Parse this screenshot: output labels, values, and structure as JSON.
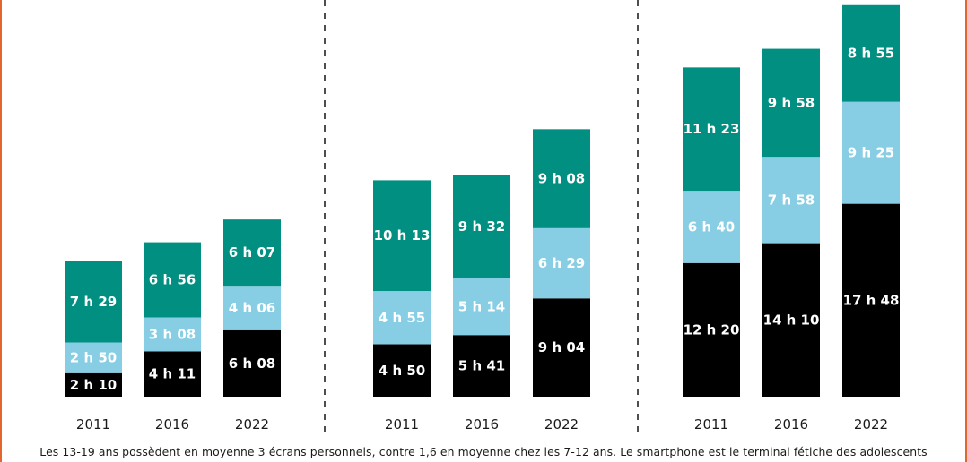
{
  "colors": {
    "teal": "#008f80",
    "light_blue": "#87cde3",
    "black": "#000000",
    "accent": "#e2672f"
  },
  "caption": "Les 13-19 ans possèdent en moyenne 3 écrans personnels, contre 1,6 en moyenne chez les 7-12 ans. Le smartphone est le terminal fétiche des adolescents",
  "chart_data": [
    {
      "type": "bar",
      "stacked": true,
      "categories": [
        "2011",
        "2016",
        "2022"
      ],
      "series": [
        {
          "color": "#000000",
          "values": [
            2.167,
            4.183,
            6.133
          ],
          "labels": [
            "2 h 10",
            "4 h 11",
            "6 h 08"
          ]
        },
        {
          "color": "#87cde3",
          "values": [
            2.833,
            3.133,
            4.1
          ],
          "labels": [
            "2 h 50",
            "3 h 08",
            "4 h 06"
          ]
        },
        {
          "color": "#008f80",
          "values": [
            7.483,
            6.933,
            6.117
          ],
          "labels": [
            "7 h 29",
            "6 h 56",
            "6 h 07"
          ]
        }
      ]
    },
    {
      "type": "bar",
      "stacked": true,
      "categories": [
        "2011",
        "2016",
        "2022"
      ],
      "series": [
        {
          "color": "#000000",
          "values": [
            4.833,
            5.683,
            9.067
          ],
          "labels": [
            "4 h 50",
            "5 h 41",
            "9 h 04"
          ]
        },
        {
          "color": "#87cde3",
          "values": [
            4.917,
            5.233,
            6.483
          ],
          "labels": [
            "4 h 55",
            "5 h 14",
            "6 h 29"
          ]
        },
        {
          "color": "#008f80",
          "values": [
            10.217,
            9.533,
            9.133
          ],
          "labels": [
            "10 h 13",
            "9 h 32",
            "9 h 08"
          ]
        }
      ]
    },
    {
      "type": "bar",
      "stacked": true,
      "categories": [
        "2011",
        "2016",
        "2022"
      ],
      "series": [
        {
          "color": "#000000",
          "values": [
            12.333,
            14.167,
            17.8
          ],
          "labels": [
            "12 h 20",
            "14 h 10",
            "17 h 48"
          ]
        },
        {
          "color": "#87cde3",
          "values": [
            6.667,
            7.967,
            9.417
          ],
          "labels": [
            "6 h 40",
            "7 h 58",
            "9 h 25"
          ]
        },
        {
          "color": "#008f80",
          "values": [
            11.383,
            9.967,
            8.917
          ],
          "labels": [
            "11 h 23",
            "9 h 58",
            "8 h 55"
          ]
        }
      ]
    }
  ]
}
